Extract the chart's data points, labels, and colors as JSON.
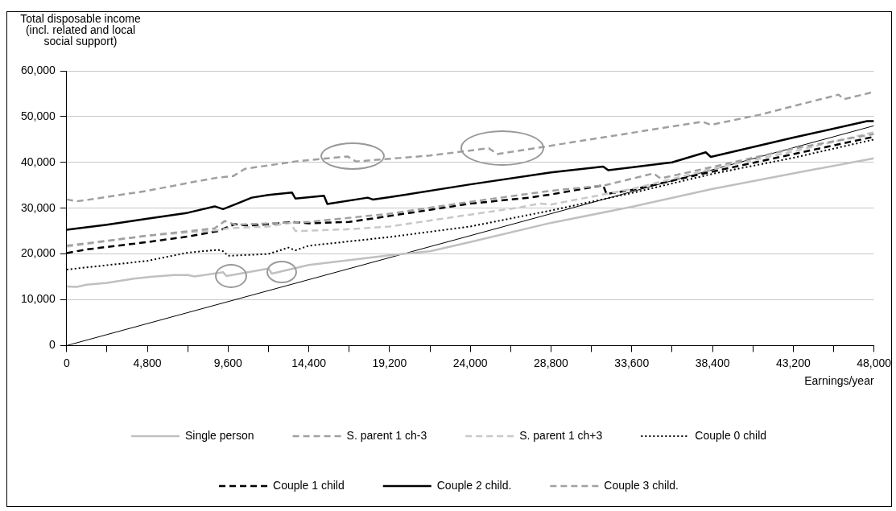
{
  "chart_data": {
    "type": "line",
    "ylabel": "Total disposable income (incl. related and local social support)",
    "xlabel": "Earnings/year",
    "xlim": [
      0,
      48000
    ],
    "xticks": [
      0,
      {
        "value": 2400,
        "label": null
      },
      {
        "value": 4800,
        "label": "4,800"
      },
      {
        "value": 7200,
        "label": null
      },
      {
        "value": 9600,
        "label": "9,600"
      },
      {
        "value": 12000,
        "label": null
      },
      {
        "value": 14400,
        "label": "14,400"
      },
      {
        "value": 16800,
        "label": null
      },
      {
        "value": 19200,
        "label": "19,200"
      },
      {
        "value": 21600,
        "label": null
      },
      {
        "value": 24000,
        "label": "24,000"
      },
      {
        "value": 26400,
        "label": null
      },
      {
        "value": 28800,
        "label": "28,800"
      },
      {
        "value": 31200,
        "label": null
      },
      {
        "value": 33600,
        "label": "33,600"
      },
      {
        "value": 36000,
        "label": null
      },
      {
        "value": 38400,
        "label": "38,400"
      },
      {
        "value": 40800,
        "label": null
      },
      {
        "value": 43200,
        "label": "43,200"
      },
      {
        "value": 45600,
        "label": null
      },
      {
        "value": 48000,
        "label": "48,000"
      }
    ],
    "ylim": [
      0,
      60000
    ],
    "yticks": [
      0,
      {
        "value": 10000,
        "label": "10,000"
      },
      {
        "value": 20000,
        "label": "20,000"
      },
      {
        "value": 30000,
        "label": "30,000"
      },
      {
        "value": 40000,
        "label": "40,000"
      },
      {
        "value": 50000,
        "label": "50,000"
      },
      {
        "value": 60000,
        "label": "60,000"
      }
    ],
    "grid": "y",
    "legend": "bottom",
    "marker": "none",
    "series": [
      {
        "name": "Single person",
        "color": "#c0c0c0",
        "line_style": "solid",
        "x": [
          0,
          600,
          1200,
          2400,
          4000,
          5000,
          6400,
          7200,
          7600,
          9300,
          9500,
          12000,
          12200,
          14400,
          19200,
          20000,
          21600,
          24000,
          28800,
          33600,
          38400,
          43200,
          48000
        ],
        "values": [
          12900,
          12800,
          13300,
          13700,
          14600,
          15000,
          15400,
          15400,
          15100,
          16000,
          15200,
          16800,
          15700,
          17600,
          19700,
          20000,
          20600,
          22600,
          26800,
          30300,
          34200,
          37600,
          40900
        ]
      },
      {
        "name": "S. parent 1 ch-3",
        "color": "#a0a0a0",
        "line_style": "dashed",
        "x": [
          0,
          4800,
          8800,
          9400,
          10000,
          14400,
          19200,
          24000,
          28800,
          32000,
          34900,
          35300,
          38400,
          43200,
          48000
        ],
        "values": [
          21800,
          24000,
          25600,
          27200,
          26400,
          27000,
          28800,
          31400,
          33800,
          35000,
          37600,
          36500,
          39000,
          43000,
          46200
        ]
      },
      {
        "name": "S. parent 1 ch+3",
        "color": "#c8c8c8",
        "line_style": "dashed",
        "x": [
          0,
          4800,
          9000,
          9600,
          12000,
          13300,
          13600,
          16800,
          19200,
          24000,
          27000,
          28100,
          28800,
          33600,
          38400,
          43200,
          48000
        ],
        "values": [
          21600,
          24000,
          25200,
          25600,
          26000,
          26800,
          25000,
          25400,
          26000,
          28600,
          30200,
          31000,
          30800,
          34200,
          38600,
          42400,
          46600
        ]
      },
      {
        "name": "Couple 0 child",
        "color": "#000000",
        "line_style": "dotted",
        "x": [
          0,
          4800,
          7200,
          9000,
          9300,
          9600,
          12000,
          13200,
          13600,
          14400,
          19200,
          24000,
          28800,
          33600,
          38400,
          43200,
          48000
        ],
        "values": [
          16600,
          18500,
          20300,
          20900,
          20600,
          19600,
          20000,
          21400,
          20800,
          21800,
          23700,
          26000,
          29500,
          33300,
          37500,
          41000,
          45000
        ]
      },
      {
        "name": "Couple 1 child",
        "color": "#000000",
        "line_style": "dashed",
        "x": [
          0,
          1200,
          4800,
          7200,
          9000,
          10000,
          10800,
          12000,
          13400,
          14400,
          16800,
          19200,
          24000,
          27500,
          28800,
          31900,
          32100,
          33600,
          38400,
          43200,
          48000
        ],
        "values": [
          20200,
          21000,
          22600,
          23800,
          25000,
          26500,
          26200,
          26500,
          27000,
          26700,
          27000,
          28300,
          31000,
          32300,
          33000,
          35000,
          33100,
          34000,
          38000,
          41800,
          45600
        ]
      },
      {
        "name": "Couple 2 child.",
        "color": "#000000",
        "line_style": "solid",
        "x": [
          0,
          2400,
          4800,
          7200,
          8800,
          9300,
          10000,
          11000,
          12000,
          13400,
          13600,
          15300,
          15500,
          17900,
          18200,
          19200,
          24000,
          28800,
          31900,
          32200,
          36000,
          38000,
          38300,
          43200,
          47600,
          48000
        ],
        "values": [
          25300,
          26400,
          27700,
          29000,
          30400,
          29800,
          30800,
          32300,
          32900,
          33400,
          32100,
          32700,
          30900,
          32300,
          31900,
          32400,
          35200,
          37800,
          39100,
          38300,
          40000,
          42200,
          41200,
          45400,
          49000,
          49000
        ]
      },
      {
        "name": "Couple 3 child.",
        "color": "#a0a0a0",
        "line_style": "dashed",
        "x": [
          0,
          600,
          1200,
          4800,
          7200,
          9000,
          9900,
          10600,
          13800,
          16700,
          17200,
          21600,
          25100,
          25600,
          37800,
          38300,
          41200,
          45900,
          46200,
          48000
        ],
        "values": [
          31900,
          31500,
          31800,
          33800,
          35500,
          36700,
          37000,
          38600,
          40300,
          41300,
          40200,
          41500,
          43100,
          41800,
          48900,
          48200,
          50400,
          54800,
          53800,
          55400
        ]
      },
      {
        "color": "#000000",
        "line_style": "solid",
        "x": [
          0,
          48000
        ],
        "values": [
          0,
          48000
        ]
      }
    ]
  }
}
